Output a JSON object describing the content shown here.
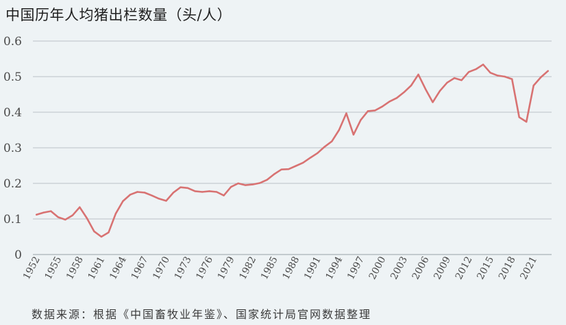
{
  "chart_data": {
    "type": "line",
    "title": "中国历年人均猪出栏数量（头/人）",
    "source": "数据来源：根据《中国畜牧业年鉴》、国家统计局官网数据整理",
    "ylim": [
      0,
      0.6
    ],
    "yticks": [
      "0",
      "0.1",
      "0.2",
      "0.3",
      "0.4",
      "0.5",
      "0.6"
    ],
    "xticks": [
      "1952",
      "1955",
      "1958",
      "1961",
      "1964",
      "1967",
      "1970",
      "1973",
      "1976",
      "1979",
      "1982",
      "1985",
      "1988",
      "1991",
      "1994",
      "1997",
      "2000",
      "2003",
      "2006",
      "2009",
      "2012",
      "2015",
      "2018",
      "2021"
    ],
    "grid": true,
    "line_color": "#d87272",
    "grid_color": "#b9c1c6",
    "x": [
      1952,
      1953,
      1954,
      1955,
      1956,
      1957,
      1958,
      1959,
      1960,
      1961,
      1962,
      1963,
      1964,
      1965,
      1966,
      1967,
      1968,
      1969,
      1970,
      1971,
      1972,
      1973,
      1974,
      1975,
      1976,
      1977,
      1978,
      1979,
      1980,
      1981,
      1982,
      1983,
      1984,
      1985,
      1986,
      1987,
      1988,
      1989,
      1990,
      1991,
      1992,
      1993,
      1994,
      1995,
      1996,
      1997,
      1998,
      1999,
      2000,
      2001,
      2002,
      2003,
      2004,
      2005,
      2006,
      2007,
      2008,
      2009,
      2010,
      2011,
      2012,
      2013,
      2014,
      2015,
      2016,
      2017,
      2018,
      2019,
      2020,
      2021,
      2022,
      2023
    ],
    "values": [
      0.112,
      0.118,
      0.122,
      0.105,
      0.098,
      0.11,
      0.133,
      0.102,
      0.065,
      0.05,
      0.062,
      0.115,
      0.15,
      0.168,
      0.176,
      0.174,
      0.166,
      0.157,
      0.151,
      0.174,
      0.189,
      0.187,
      0.178,
      0.176,
      0.178,
      0.176,
      0.166,
      0.19,
      0.2,
      0.195,
      0.197,
      0.201,
      0.21,
      0.226,
      0.239,
      0.24,
      0.249,
      0.258,
      0.272,
      0.285,
      0.303,
      0.318,
      0.35,
      0.397,
      0.337,
      0.378,
      0.403,
      0.405,
      0.416,
      0.43,
      0.44,
      0.456,
      0.475,
      0.506,
      0.465,
      0.428,
      0.46,
      0.483,
      0.496,
      0.49,
      0.513,
      0.521,
      0.534,
      0.511,
      0.503,
      0.5,
      0.493,
      0.386,
      0.373,
      0.475,
      0.498,
      0.516
    ]
  }
}
